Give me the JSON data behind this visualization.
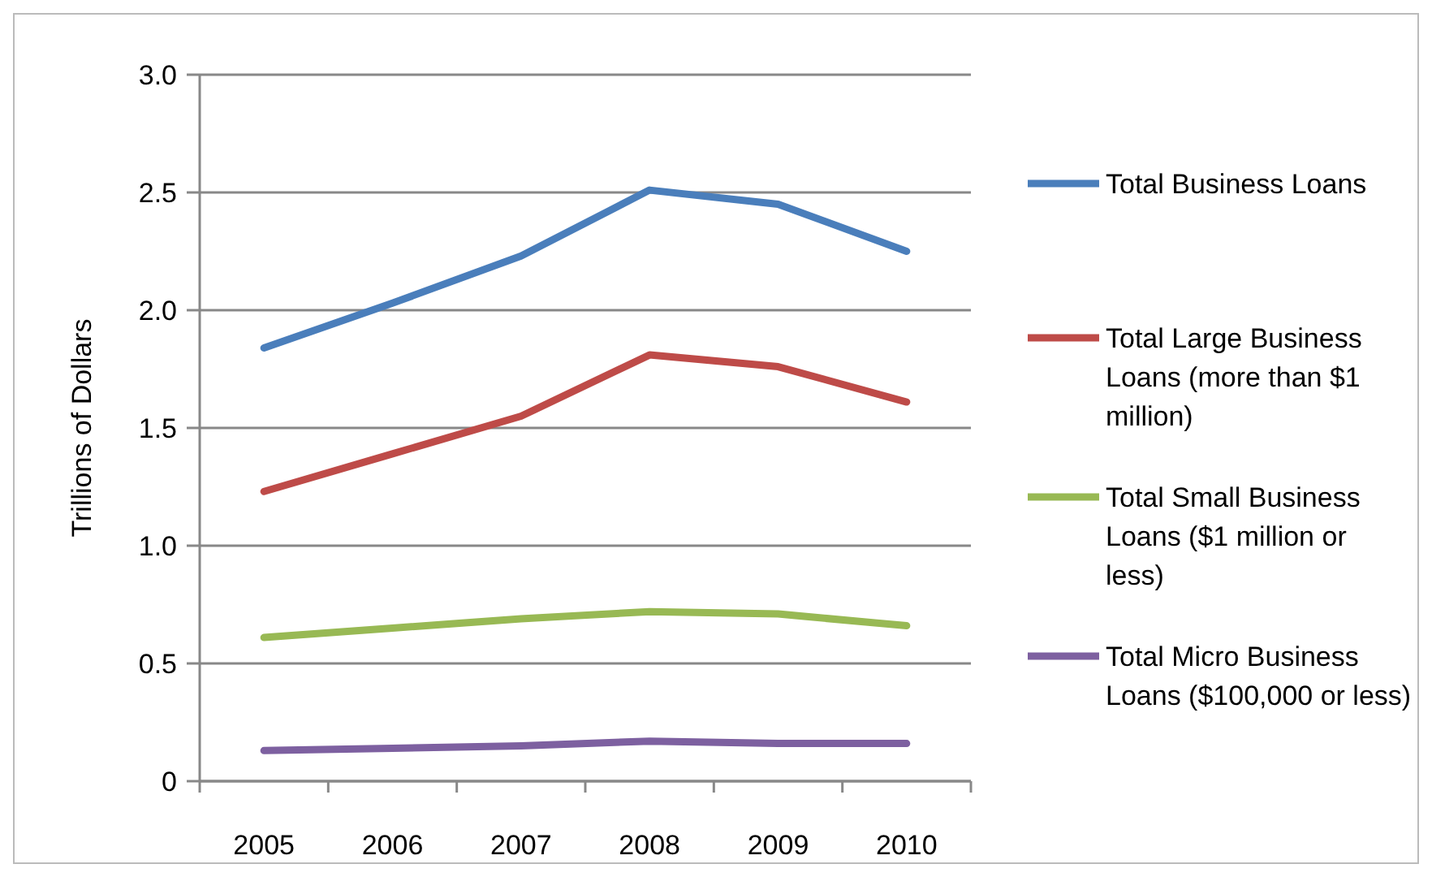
{
  "chart_data": {
    "type": "line",
    "ylabel": "Trillions of Dollars",
    "categories": [
      "2005",
      "2006",
      "2007",
      "2008",
      "2009",
      "2010"
    ],
    "series": [
      {
        "name": "Total Business Loans",
        "color": "#4a7ebb",
        "values": [
          1.84,
          2.03,
          2.23,
          2.51,
          2.45,
          2.25
        ]
      },
      {
        "name": "Total Large Business Loans (more than $1 million)",
        "color": "#be4b48",
        "values": [
          1.23,
          1.39,
          1.55,
          1.81,
          1.76,
          1.61
        ]
      },
      {
        "name": "Total Small  Business Loans ($1 million or less)",
        "color": "#98b954",
        "values": [
          0.61,
          0.65,
          0.69,
          0.72,
          0.71,
          0.66
        ]
      },
      {
        "name": "Total Micro Business Loans ($100,000 or less)",
        "color": "#7d60a0",
        "values": [
          0.13,
          0.14,
          0.15,
          0.17,
          0.16,
          0.16
        ]
      }
    ],
    "ylim": [
      0,
      3
    ],
    "yticks": [
      0,
      {
        "value": 0.5,
        "label": "0.5"
      },
      {
        "value": 1,
        "label": "1.0"
      },
      {
        "value": 1.5,
        "label": "1.5"
      },
      {
        "value": 2,
        "label": "2.0"
      },
      {
        "value": 2.5,
        "label": "2.5"
      },
      {
        "value": 3,
        "label": "3.0"
      }
    ],
    "grid": "y",
    "legend": "right",
    "marker": "none",
    "line_style": "solid"
  }
}
